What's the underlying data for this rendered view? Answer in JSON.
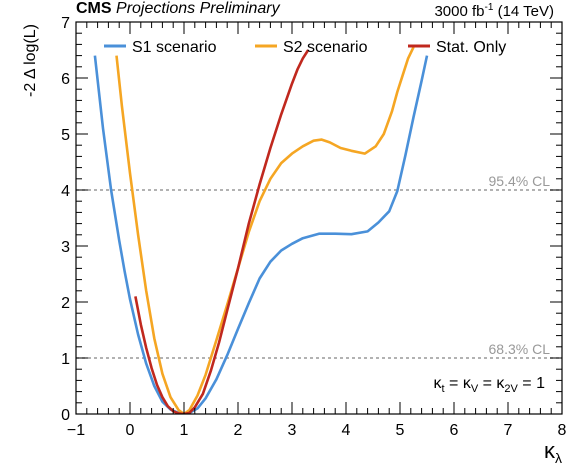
{
  "header": {
    "experiment": "CMS",
    "status": "Projections Preliminary",
    "lumi_prefix": "3000 fb",
    "lumi_exp": "-1",
    "lumi_suffix": "(14 TeV)"
  },
  "chart_data": {
    "type": "line",
    "title": "",
    "xlabel": "κ",
    "xlabel_sub": "λ",
    "ylabel": "-2 Δ log(L)",
    "xlim": [
      -1,
      8
    ],
    "ylim": [
      0,
      7
    ],
    "xticks": [
      -1,
      0,
      1,
      2,
      3,
      4,
      5,
      6,
      7,
      8
    ],
    "xtick_labels": [
      "−1",
      "0",
      "1",
      "2",
      "3",
      "4",
      "5",
      "6",
      "7",
      "8"
    ],
    "yticks": [
      0,
      1,
      2,
      3,
      4,
      5,
      6,
      7
    ],
    "ytick_labels": [
      "0",
      "1",
      "2",
      "3",
      "4",
      "5",
      "6",
      "7"
    ],
    "grid": false,
    "legend_position": "top",
    "annotation": {
      "parts": [
        "κ",
        "t",
        " = ",
        "κ",
        "V",
        " = ",
        "κ",
        "2V",
        " = 1"
      ]
    },
    "reference_lines": [
      {
        "y": 4.0,
        "label": "95.4% CL",
        "color": "#999999"
      },
      {
        "y": 1.0,
        "label": "68.3% CL",
        "color": "#999999"
      }
    ],
    "series": [
      {
        "name": "S1 scenario",
        "color": "#4a90d9",
        "x": [
          -0.65,
          -0.5,
          -0.35,
          -0.2,
          -0.1,
          0.0,
          0.15,
          0.3,
          0.45,
          0.6,
          0.75,
          0.9,
          1.0,
          1.1,
          1.25,
          1.4,
          1.6,
          1.8,
          2.0,
          2.2,
          2.4,
          2.6,
          2.8,
          3.0,
          3.2,
          3.5,
          3.8,
          4.1,
          4.4,
          4.6,
          4.8,
          4.95,
          5.1,
          5.25,
          5.4,
          5.5
        ],
        "y": [
          6.4,
          5.1,
          4.0,
          3.1,
          2.55,
          2.05,
          1.42,
          0.9,
          0.5,
          0.22,
          0.08,
          0.02,
          0.0,
          0.02,
          0.1,
          0.28,
          0.62,
          1.05,
          1.52,
          1.98,
          2.42,
          2.72,
          2.92,
          3.04,
          3.14,
          3.22,
          3.22,
          3.21,
          3.26,
          3.42,
          3.62,
          3.98,
          4.62,
          5.3,
          5.95,
          6.4
        ]
      },
      {
        "name": "S2 scenario",
        "color": "#f5a623",
        "x": [
          -0.25,
          -0.15,
          0.0,
          0.15,
          0.3,
          0.45,
          0.6,
          0.75,
          0.9,
          1.0,
          1.1,
          1.25,
          1.4,
          1.6,
          1.8,
          2.0,
          2.2,
          2.4,
          2.6,
          2.8,
          3.0,
          3.2,
          3.4,
          3.55,
          3.7,
          3.9,
          4.1,
          4.35,
          4.55,
          4.7,
          4.85,
          4.95,
          5.05,
          5.15,
          5.25
        ],
        "y": [
          6.4,
          5.5,
          4.3,
          3.2,
          2.2,
          1.35,
          0.72,
          0.3,
          0.07,
          0.0,
          0.07,
          0.33,
          0.7,
          1.32,
          1.95,
          2.6,
          3.25,
          3.8,
          4.2,
          4.48,
          4.65,
          4.78,
          4.88,
          4.9,
          4.85,
          4.75,
          4.7,
          4.65,
          4.78,
          5.0,
          5.4,
          5.75,
          6.05,
          6.35,
          6.55
        ]
      },
      {
        "name": "Stat. Only",
        "color": "#c0281e",
        "x": [
          0.1,
          0.2,
          0.3,
          0.4,
          0.5,
          0.6,
          0.7,
          0.8,
          0.9,
          1.0,
          1.1,
          1.2,
          1.35,
          1.5,
          1.65,
          1.8,
          2.0,
          2.2,
          2.4,
          2.6,
          2.8,
          3.0,
          3.1,
          3.2,
          3.3
        ],
        "y": [
          2.1,
          1.6,
          1.18,
          0.82,
          0.52,
          0.3,
          0.14,
          0.05,
          0.01,
          0.0,
          0.02,
          0.12,
          0.36,
          0.78,
          1.28,
          1.85,
          2.6,
          3.4,
          4.1,
          4.75,
          5.35,
          5.9,
          6.15,
          6.35,
          6.5
        ]
      }
    ]
  }
}
